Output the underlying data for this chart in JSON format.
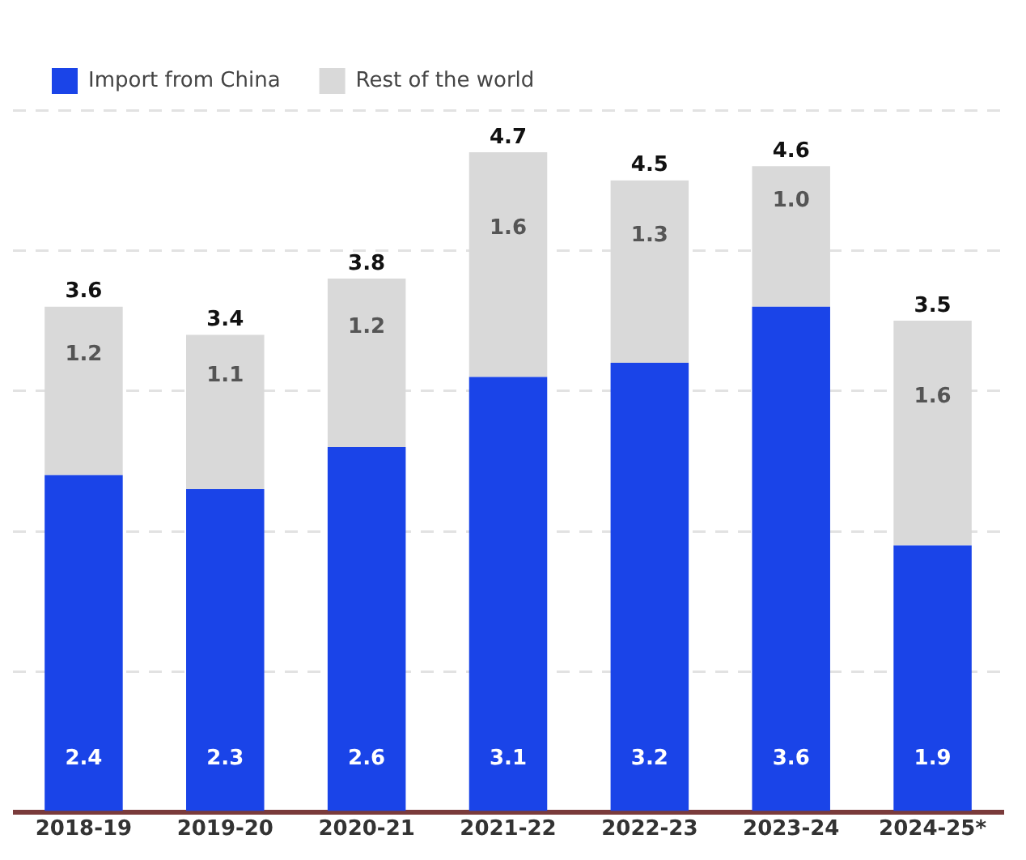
{
  "chart_data": {
    "type": "bar",
    "stacked": true,
    "categories": [
      "2018-19",
      "2019-20",
      "2020-21",
      "2021-22",
      "2022-23",
      "2023-24",
      "2024-25*"
    ],
    "series": [
      {
        "name": "Import from China",
        "color": "#1a44e8",
        "values": [
          2.4,
          2.3,
          2.6,
          3.1,
          3.2,
          3.6,
          1.9
        ],
        "value_labels": [
          "2.4",
          "2.3",
          "2.6",
          "3.1",
          "3.2",
          "3.6",
          "1.9"
        ]
      },
      {
        "name": "Rest of the world",
        "color": "#d9d9d9",
        "values": [
          1.2,
          1.1,
          1.2,
          1.6,
          1.3,
          1.0,
          1.6
        ],
        "value_labels": [
          "1.2",
          "1.1",
          "1.2",
          "1.6",
          "1.3",
          "1.0",
          "1.6"
        ]
      }
    ],
    "totals": [
      "3.6",
      "3.4",
      "3.8",
      "4.7",
      "4.5",
      "4.6",
      "3.5"
    ],
    "grid": "y",
    "legend": "top left"
  }
}
